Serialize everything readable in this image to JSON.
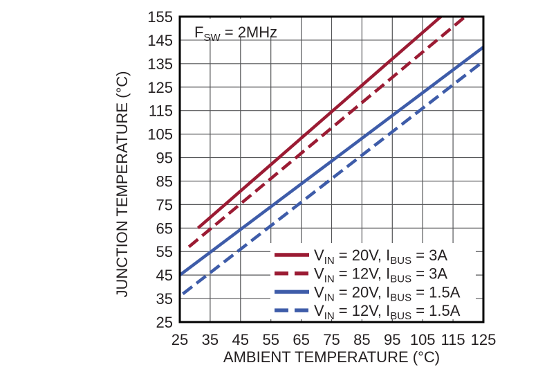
{
  "style": {
    "background": "#ffffff",
    "text_color": "#231f20",
    "grid_color": "#545557",
    "frame_color": "#000000",
    "red": "#9B1B33",
    "blue": "#3E5CA9"
  },
  "chart_data": {
    "type": "line",
    "title": "",
    "xlabel": "AMBIENT TEMPERATURE (°C)",
    "ylabel": "JUNCTION TEMPERATURE (°C)",
    "xlim": [
      25,
      125
    ],
    "ylim": [
      25,
      155
    ],
    "xticks": [
      25,
      35,
      45,
      55,
      65,
      75,
      85,
      95,
      105,
      115,
      125
    ],
    "yticks": [
      25,
      35,
      45,
      55,
      65,
      75,
      85,
      95,
      105,
      115,
      125,
      135,
      145,
      155
    ],
    "grid": true,
    "legend_position": "lower right",
    "annotation": {
      "text": "FSW = 2MHz",
      "segments": [
        {
          "t": "F"
        },
        {
          "t": "SW",
          "sub": true
        },
        {
          "t": " = 2MHz"
        }
      ]
    },
    "series": [
      {
        "name": "VIN = 20V, IBUS = 3A",
        "label_segments": [
          {
            "t": "V"
          },
          {
            "t": "IN",
            "sub": true
          },
          {
            "t": " = 20V, I"
          },
          {
            "t": "BUS",
            "sub": true
          },
          {
            "t": " = 3A"
          }
        ],
        "color": "#9B1B33",
        "dash": false,
        "points": [
          [
            31,
            65
          ],
          [
            111,
            155
          ]
        ]
      },
      {
        "name": "VIN = 12V, IBUS = 3A",
        "label_segments": [
          {
            "t": "V"
          },
          {
            "t": "IN",
            "sub": true
          },
          {
            "t": " = 12V, I"
          },
          {
            "t": "BUS",
            "sub": true
          },
          {
            "t": " = 3A"
          }
        ],
        "color": "#9B1B33",
        "dash": true,
        "points": [
          [
            28,
            57
          ],
          [
            119,
            155
          ]
        ]
      },
      {
        "name": "VIN = 20V, IBUS = 1.5A",
        "label_segments": [
          {
            "t": "V"
          },
          {
            "t": "IN",
            "sub": true
          },
          {
            "t": " = 20V, I"
          },
          {
            "t": "BUS",
            "sub": true
          },
          {
            "t": " = 1.5A"
          }
        ],
        "color": "#3E5CA9",
        "dash": false,
        "points": [
          [
            25,
            45
          ],
          [
            125,
            142
          ]
        ]
      },
      {
        "name": "VIN = 12V, IBUS = 1.5A",
        "label_segments": [
          {
            "t": "V"
          },
          {
            "t": "IN",
            "sub": true
          },
          {
            "t": " = 12V, I"
          },
          {
            "t": "BUS",
            "sub": true
          },
          {
            "t": " = 1.5A"
          }
        ],
        "color": "#3E5CA9",
        "dash": true,
        "points": [
          [
            26,
            37
          ],
          [
            125,
            136
          ]
        ]
      }
    ]
  }
}
